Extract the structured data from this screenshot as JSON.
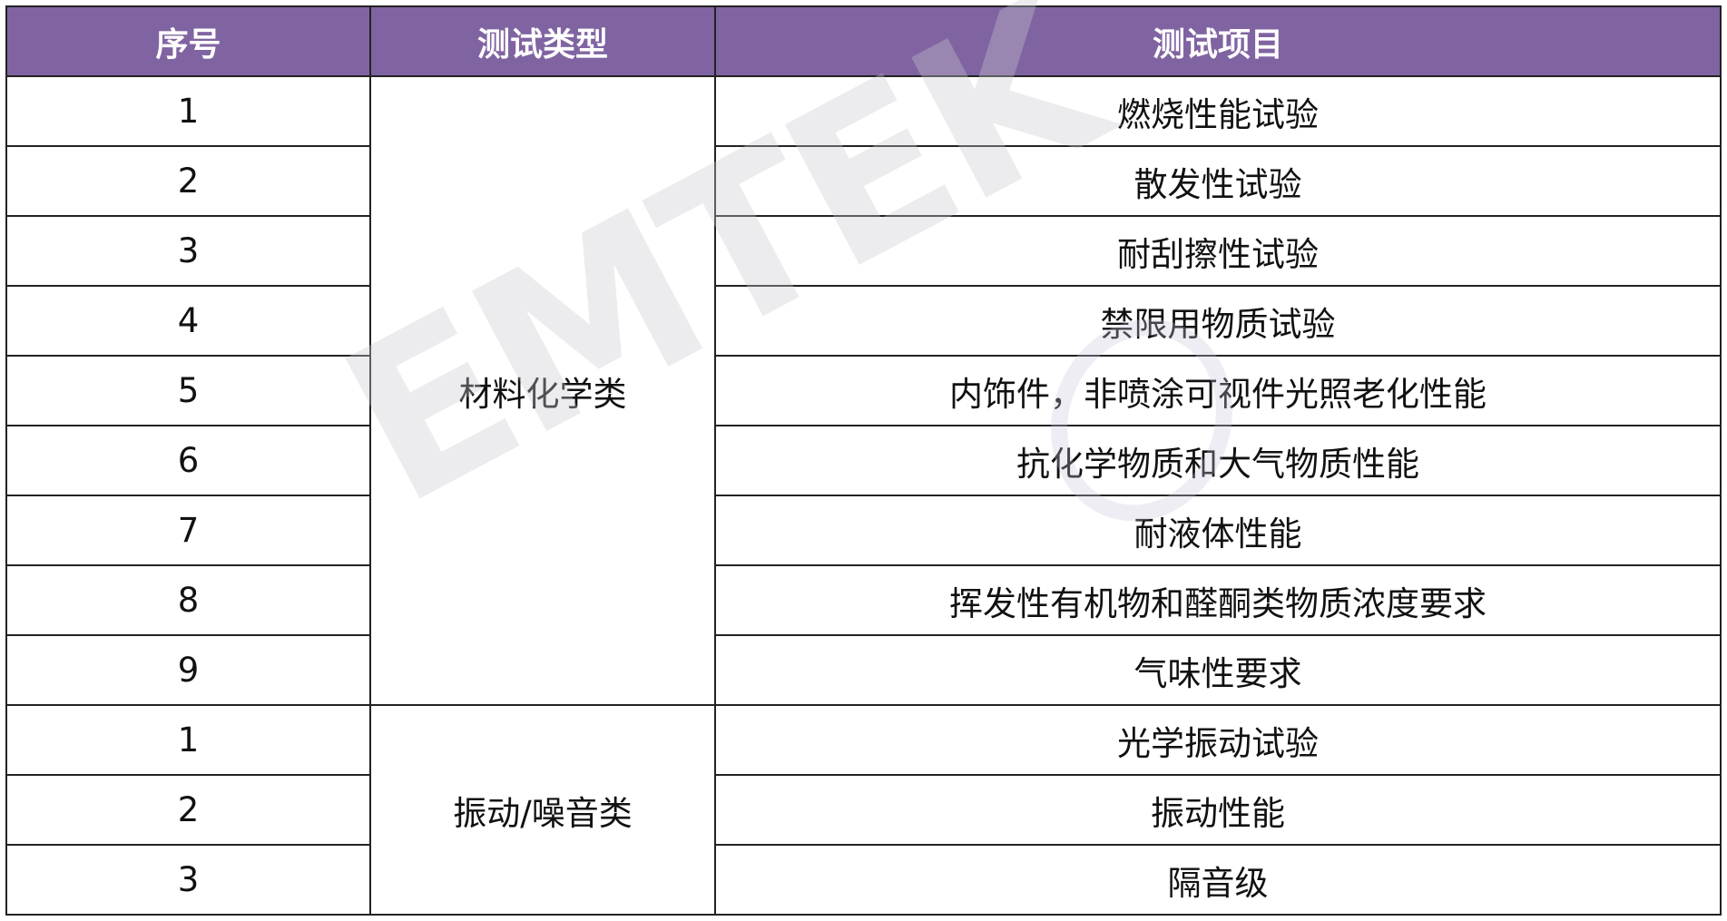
{
  "header": {
    "col1": "序号",
    "col2": "测试类型",
    "col3": "测试项目"
  },
  "groups": [
    {
      "type": "材料化学类",
      "rows": [
        {
          "no": "1",
          "item": "燃烧性能试验"
        },
        {
          "no": "2",
          "item": "散发性试验"
        },
        {
          "no": "3",
          "item": "耐刮擦性试验"
        },
        {
          "no": "4",
          "item": "禁限用物质试验"
        },
        {
          "no": "5",
          "item": "内饰件，非喷涂可视件光照老化性能"
        },
        {
          "no": "6",
          "item": "抗化学物质和大气物质性能"
        },
        {
          "no": "7",
          "item": "耐液体性能"
        },
        {
          "no": "8",
          "item": "挥发性有机物和醛酮类物质浓度要求"
        },
        {
          "no": "9",
          "item": "气味性要求"
        }
      ]
    },
    {
      "type": "振动/噪音类",
      "rows": [
        {
          "no": "1",
          "item": "光学振动试验"
        },
        {
          "no": "2",
          "item": "振动性能"
        },
        {
          "no": "3",
          "item": "隔音级"
        }
      ]
    }
  ],
  "watermark": "EMTEK",
  "colors": {
    "header_bg": "#8064a2",
    "header_text": "#ffffff",
    "border": "#222222"
  }
}
